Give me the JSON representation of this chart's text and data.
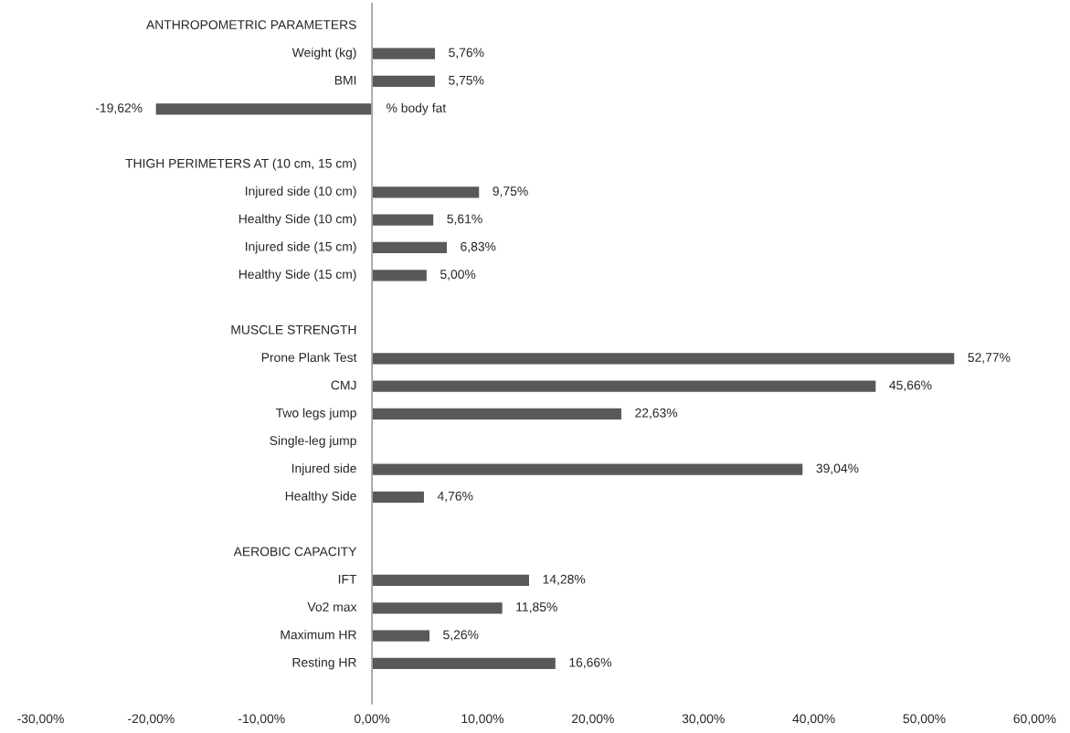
{
  "chart_data": {
    "type": "bar",
    "orientation": "horizontal",
    "categories": [
      "ANTHROPOMETRIC PARAMETERS",
      "Weight (kg)",
      "BMI",
      "% body fat",
      null,
      "THIGH PERIMETERS AT (10 cm, 15 cm)",
      "Injured side (10 cm)",
      "Healthy Side (10 cm)",
      "Injured side (15 cm)",
      "Healthy Side (15 cm)",
      null,
      "MUSCLE STRENGTH",
      "Prone Plank Test",
      "CMJ",
      "Two legs jump",
      "Single-leg jump",
      "Injured side",
      "Healthy Side",
      null,
      "AEROBIC CAPACITY",
      "IFT",
      "Vo2 max",
      "Maximum HR",
      "Resting HR"
    ],
    "values": [
      null,
      5.76,
      5.75,
      -19.62,
      null,
      null,
      9.75,
      5.61,
      6.83,
      5.0,
      null,
      null,
      52.77,
      45.66,
      22.63,
      null,
      39.04,
      4.76,
      null,
      null,
      14.28,
      11.85,
      5.26,
      16.66
    ],
    "value_labels": [
      null,
      "5,76%",
      "5,75%",
      "-19,62%",
      null,
      null,
      "9,75%",
      "5,61%",
      "6,83%",
      "5,00%",
      null,
      null,
      "52,77%",
      "45,66%",
      "22,63%",
      null,
      "39,04%",
      "4,76%",
      null,
      null,
      "14,28%",
      "11,85%",
      "5,26%",
      "16,66%"
    ],
    "color": "#595959",
    "xlim": [
      -30,
      60
    ],
    "xticks": [
      {
        "value": -30,
        "label": "-30,00%"
      },
      {
        "value": -20,
        "label": "-20,00%"
      },
      {
        "value": -10,
        "label": "-10,00%"
      },
      {
        "value": 0,
        "label": "0,00%"
      },
      {
        "value": 10,
        "label": "10,00%"
      },
      {
        "value": 20,
        "label": "20,00%"
      },
      {
        "value": 30,
        "label": "30,00%"
      },
      {
        "value": 40,
        "label": "40,00%"
      },
      {
        "value": 50,
        "label": "50,00%"
      },
      {
        "value": 60,
        "label": "60,00%"
      }
    ],
    "grid": false,
    "legend": false
  }
}
